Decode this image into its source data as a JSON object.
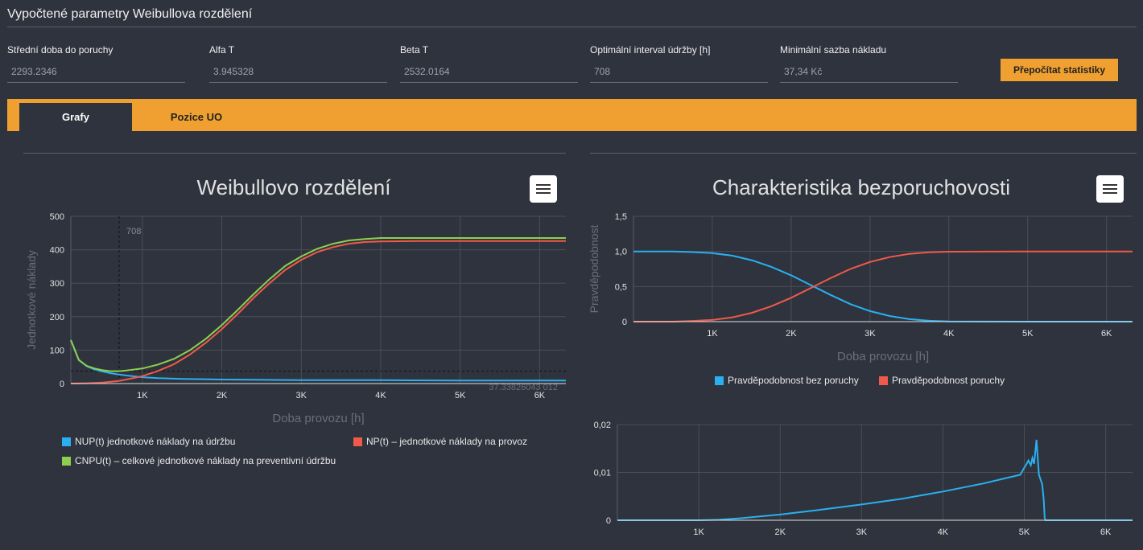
{
  "page": {
    "title": "Vypočtené parametry Weibullova rozdělení"
  },
  "fields": [
    {
      "label": "Střední doba do poruchy",
      "value": "2293.2346"
    },
    {
      "label": "Alfa T",
      "value": "3.945328"
    },
    {
      "label": "Beta T",
      "value": "2532.0164"
    },
    {
      "label": "Optimální interval údržby [h]",
      "value": "708"
    },
    {
      "label": "Minimální sazba nákladu",
      "value": "37,34 Kč"
    }
  ],
  "recalc_button": "Přepočítat statistiky",
  "tabs": [
    {
      "label": "Grafy",
      "active": true
    },
    {
      "label": "Pozice UO",
      "active": false
    }
  ],
  "colors": {
    "accent": "#f0a030",
    "blue": "#2ab0f0",
    "red": "#f05a4a",
    "green": "#8cd050"
  },
  "icons": {
    "menu": "hamburger-menu-icon"
  },
  "chart_data": [
    {
      "type": "line",
      "title": "Weibullovo rozdělení",
      "xlabel": "Doba provozu [h]",
      "ylabel": "Jednotkové náklady",
      "xlim": [
        100,
        6330
      ],
      "ylim": [
        0,
        500
      ],
      "x_ticks": [
        1000,
        2000,
        3000,
        4000,
        5000,
        6000
      ],
      "x_tick_labels": [
        "1K",
        "2K",
        "3K",
        "4K",
        "5K",
        "6K"
      ],
      "y_ticks": [
        0,
        100,
        200,
        300,
        400,
        500
      ],
      "y_tick_labels": [
        "0",
        "100",
        "200",
        "300",
        "400",
        "500"
      ],
      "grid": true,
      "legend": "bottom",
      "annotations": {
        "vline_x": 708,
        "vline_label": "708",
        "hline_y": 37.34,
        "hline_label": "37.33826043 012"
      },
      "series": [
        {
          "name": "NUP(t) jednotkové náklady na údržbu",
          "color": "#2ab0f0",
          "x": [
            100,
            200,
            300,
            400,
            500,
            600,
            708,
            800,
            1000,
            1200,
            1500,
            2000,
            2500,
            3000,
            4000,
            5000,
            6330
          ],
          "y": [
            130,
            70,
            52,
            42,
            36,
            31,
            27,
            24,
            19,
            16,
            14,
            12,
            11,
            10,
            10,
            9,
            9
          ]
        },
        {
          "name": "NP(t) – jednotkové náklady na provoz",
          "color": "#f05a4a",
          "x": [
            100,
            300,
            500,
            708,
            900,
            1000,
            1200,
            1400,
            1600,
            1800,
            2000,
            2200,
            2400,
            2600,
            2800,
            3000,
            3200,
            3400,
            3600,
            3800,
            4000,
            4500,
            5000,
            6330
          ],
          "y": [
            0,
            1,
            3,
            8,
            17,
            22,
            38,
            58,
            87,
            122,
            163,
            208,
            256,
            300,
            340,
            370,
            393,
            408,
            418,
            423,
            425,
            426,
            426,
            426
          ]
        },
        {
          "name": "CNPU(t) – celkové jednotkové náklady na preventivní údržbu",
          "color": "#8cd050",
          "x": [
            100,
            200,
            300,
            400,
            500,
            600,
            708,
            800,
            1000,
            1200,
            1400,
            1600,
            1800,
            2000,
            2200,
            2400,
            2600,
            2800,
            3000,
            3200,
            3400,
            3600,
            3800,
            4000,
            4500,
            5000,
            6330
          ],
          "y": [
            130,
            71,
            53,
            45,
            40,
            37,
            37,
            39,
            45,
            57,
            74,
            100,
            134,
            175,
            220,
            267,
            312,
            352,
            380,
            403,
            418,
            428,
            432,
            435,
            435,
            435,
            435
          ]
        }
      ]
    },
    {
      "type": "line",
      "title": "Charakteristika bezporuchovosti",
      "xlabel": "Doba provozu [h]",
      "ylabel": "Pravděpodobnost",
      "xlim": [
        0,
        6330
      ],
      "ylim": [
        0,
        1.5
      ],
      "x_ticks": [
        1000,
        2000,
        3000,
        4000,
        5000,
        6000
      ],
      "x_tick_labels": [
        "1K",
        "2K",
        "3K",
        "4K",
        "5K",
        "6K"
      ],
      "y_ticks": [
        0,
        0.5,
        1,
        1.5
      ],
      "y_tick_labels": [
        "0",
        "0,5",
        "1,0",
        "1,5"
      ],
      "grid": true,
      "legend": "bottom",
      "series": [
        {
          "name": "Pravděpodobnost bez poruchy",
          "color": "#2ab0f0",
          "x": [
            0,
            250,
            500,
            750,
            1000,
            1250,
            1500,
            1750,
            2000,
            2250,
            2500,
            2750,
            3000,
            3250,
            3500,
            3750,
            4000,
            5000,
            6330
          ],
          "y": [
            1.0,
            1.0,
            1.0,
            0.99,
            0.976,
            0.94,
            0.875,
            0.78,
            0.66,
            0.52,
            0.38,
            0.25,
            0.15,
            0.08,
            0.035,
            0.013,
            0.004,
            0,
            0
          ]
        },
        {
          "name": "Pravděpodobnost poruchy",
          "color": "#f05a4a",
          "x": [
            0,
            250,
            500,
            750,
            1000,
            1250,
            1500,
            1750,
            2000,
            2250,
            2500,
            2750,
            3000,
            3250,
            3500,
            3750,
            4000,
            5000,
            6330
          ],
          "y": [
            0,
            0,
            0,
            0.01,
            0.024,
            0.06,
            0.125,
            0.22,
            0.34,
            0.48,
            0.62,
            0.75,
            0.85,
            0.92,
            0.965,
            0.987,
            0.996,
            1.0,
            1.0
          ]
        }
      ]
    },
    {
      "type": "line",
      "title": "",
      "xlabel": "",
      "ylabel": "",
      "xlim": [
        0,
        6330
      ],
      "ylim": [
        0,
        0.02
      ],
      "x_ticks": [
        1000,
        2000,
        3000,
        4000,
        5000,
        6000
      ],
      "x_tick_labels": [
        "1K",
        "2K",
        "3K",
        "4K",
        "5K",
        "6K"
      ],
      "y_ticks": [
        0,
        0.01,
        0.02
      ],
      "y_tick_labels": [
        "0",
        "0,01",
        "0,02"
      ],
      "grid": true,
      "legend": "none",
      "series": [
        {
          "color": "#2ab0f0",
          "x": [
            0,
            1000,
            1250,
            1500,
            2000,
            2500,
            3000,
            3500,
            4000,
            4500,
            4800,
            4950,
            5000,
            5030,
            5050,
            5080,
            5100,
            5120,
            5150,
            5180,
            5200,
            5220,
            5240,
            5250,
            5260,
            6330
          ],
          "y": [
            0,
            0,
            0.0001,
            0.0004,
            0.0012,
            0.0022,
            0.0033,
            0.0045,
            0.006,
            0.0077,
            0.0089,
            0.0095,
            0.011,
            0.0118,
            0.0125,
            0.0115,
            0.013,
            0.0118,
            0.0168,
            0.0095,
            0.0085,
            0.0075,
            0.004,
            0.0005,
            0,
            0
          ]
        }
      ]
    }
  ]
}
